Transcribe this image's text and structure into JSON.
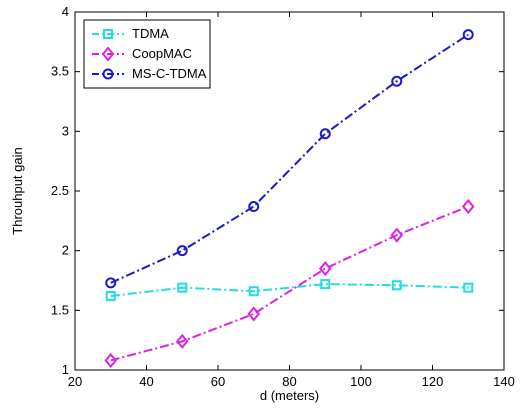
{
  "chart_data": {
    "type": "line",
    "title": "",
    "xlabel": "d (meters)",
    "ylabel": "Throuhput gain",
    "xlim": [
      20,
      140
    ],
    "ylim": [
      1,
      4
    ],
    "xticks": [
      20,
      40,
      60,
      80,
      100,
      120,
      140
    ],
    "yticks": [
      1,
      1.5,
      2,
      2.5,
      3,
      3.5,
      4
    ],
    "grid": false,
    "legend_position": "top-left",
    "series": [
      {
        "name": "TDMA",
        "color": "#22dddd",
        "marker": "square",
        "line_style": "dash-dot",
        "x": [
          30,
          50,
          70,
          90,
          110,
          130
        ],
        "y": [
          1.62,
          1.69,
          1.66,
          1.72,
          1.71,
          1.69
        ]
      },
      {
        "name": "CoopMAC",
        "color": "#dd22dd",
        "marker": "diamond",
        "line_style": "dash-dot",
        "x": [
          30,
          50,
          70,
          90,
          110,
          130
        ],
        "y": [
          1.08,
          1.24,
          1.47,
          1.85,
          2.13,
          2.37
        ]
      },
      {
        "name": "MS-C-TDMA",
        "color": "#1a1acc",
        "marker": "circle",
        "line_style": "dash-dot",
        "x": [
          30,
          50,
          70,
          90,
          110,
          130
        ],
        "y": [
          1.73,
          2.0,
          2.37,
          2.98,
          3.42,
          3.81
        ]
      }
    ]
  }
}
